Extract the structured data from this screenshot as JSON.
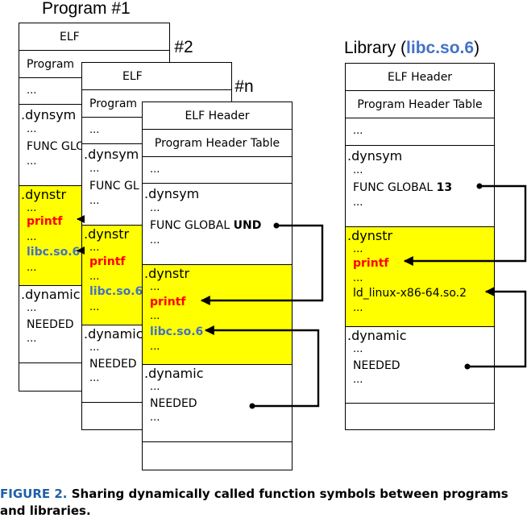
{
  "titles": {
    "program1": "Program #1",
    "program2": "Program #2",
    "programn": "Program #n",
    "library_prefix": "Library (",
    "library_name": "libc.so.6",
    "library_suffix": ")"
  },
  "common": {
    "elf_header": "ELF Header",
    "elf_short": "ELF",
    "program_short": "Program",
    "pht": "Program Header Table",
    "dots": "...",
    "dynsym": ".dynsym",
    "dynstr": ".dynstr",
    "dynamic": ".dynamic",
    "dynamic_cut": ".dynamic",
    "func_global_cut1": "FUNC GLO",
    "func_global_cut2": "FUNC GL",
    "func_global": "FUNC GLOBAL",
    "und": "UND",
    "lib_index": "13",
    "printf": "printf",
    "libc": "libc.so.6",
    "ld": "ld_linux-x86-64.so.2",
    "needed": "NEEDED"
  },
  "caption": {
    "label": "FIGURE 2.",
    "text": "Sharing dynamically called function symbols between programs and libraries."
  },
  "colors": {
    "highlight": "#ffff00",
    "printf": "#ff0000",
    "libname": "#4472c4",
    "figure_label": "#1f5fa8"
  }
}
